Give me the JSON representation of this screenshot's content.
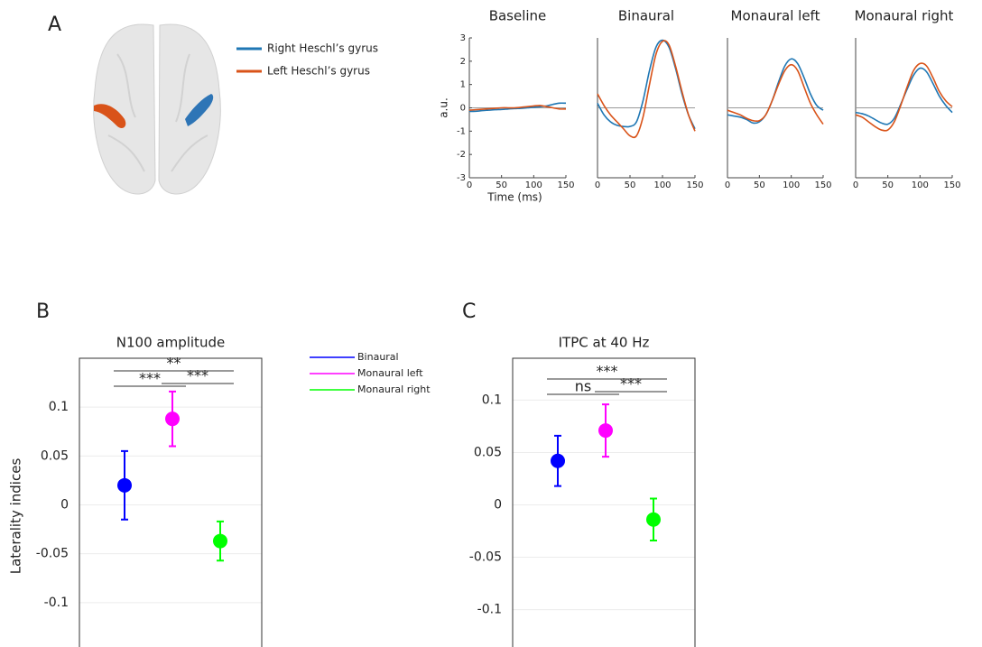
{
  "panels": [
    "A",
    "B",
    "C"
  ],
  "brain_legend": [
    {
      "name": "Right Heschl’s gyrus",
      "color": "#1f77b4"
    },
    {
      "name": "Left Heschl’s gyrus",
      "color": "#d95319"
    }
  ],
  "chart_data": [
    {
      "type": "line",
      "title": "Baseline",
      "xlabel": "Time (ms)",
      "ylabel": "a.u.",
      "x": [
        0,
        10,
        20,
        30,
        40,
        50,
        60,
        70,
        80,
        90,
        100,
        110,
        120,
        130,
        140,
        150
      ],
      "xlim": [
        0,
        150
      ],
      "xticks": [
        0,
        50,
        100,
        150
      ],
      "ylim": [
        -3,
        3
      ],
      "yticks": [
        -3,
        -2,
        -1,
        0,
        1,
        2,
        3
      ],
      "series": [
        {
          "color": "#1f77b4",
          "values": [
            -0.15,
            -0.15,
            -0.12,
            -0.1,
            -0.08,
            -0.07,
            -0.05,
            -0.03,
            -0.02,
            0,
            0.02,
            0.05,
            0.08,
            0.15,
            0.2,
            0.2
          ]
        },
        {
          "color": "#d95319",
          "values": [
            -0.1,
            -0.08,
            -0.06,
            -0.04,
            -0.02,
            0,
            0,
            0,
            0.02,
            0.05,
            0.08,
            0.1,
            0.05,
            0,
            -0.05,
            -0.05
          ]
        }
      ]
    },
    {
      "type": "line",
      "title": "Binaural",
      "x": [
        0,
        10,
        20,
        30,
        40,
        50,
        60,
        70,
        80,
        90,
        100,
        110,
        120,
        130,
        140,
        150
      ],
      "xlim": [
        0,
        150
      ],
      "xticks": [
        0,
        50,
        100,
        150
      ],
      "ylim": [
        -3,
        3
      ],
      "series": [
        {
          "color": "#1f77b4",
          "values": [
            0.2,
            -0.3,
            -0.6,
            -0.75,
            -0.8,
            -0.8,
            -0.6,
            0.3,
            1.6,
            2.6,
            2.9,
            2.6,
            1.7,
            0.6,
            -0.3,
            -0.9
          ]
        },
        {
          "color": "#d95319",
          "values": [
            0.6,
            0.1,
            -0.3,
            -0.6,
            -0.9,
            -1.2,
            -1.2,
            -0.4,
            1.0,
            2.3,
            2.85,
            2.7,
            1.8,
            0.7,
            -0.3,
            -1.0
          ]
        }
      ]
    },
    {
      "type": "line",
      "title": "Monaural left",
      "x": [
        0,
        10,
        20,
        30,
        40,
        50,
        60,
        70,
        80,
        90,
        100,
        110,
        120,
        130,
        140,
        150
      ],
      "xlim": [
        0,
        150
      ],
      "xticks": [
        0,
        50,
        100,
        150
      ],
      "ylim": [
        -3,
        3
      ],
      "series": [
        {
          "color": "#1f77b4",
          "values": [
            -0.3,
            -0.35,
            -0.4,
            -0.5,
            -0.65,
            -0.6,
            -0.3,
            0.3,
            1.1,
            1.8,
            2.1,
            1.9,
            1.3,
            0.6,
            0.1,
            -0.1
          ]
        },
        {
          "color": "#d95319",
          "values": [
            -0.1,
            -0.2,
            -0.3,
            -0.45,
            -0.55,
            -0.55,
            -0.3,
            0.3,
            1.0,
            1.6,
            1.85,
            1.6,
            0.9,
            0.2,
            -0.3,
            -0.7
          ]
        }
      ]
    },
    {
      "type": "line",
      "title": "Monaural right",
      "x": [
        0,
        10,
        20,
        30,
        40,
        50,
        60,
        70,
        80,
        90,
        100,
        110,
        120,
        130,
        140,
        150
      ],
      "xlim": [
        0,
        150
      ],
      "xticks": [
        0,
        50,
        100,
        150
      ],
      "ylim": [
        -3,
        3
      ],
      "series": [
        {
          "color": "#1f77b4",
          "values": [
            -0.2,
            -0.25,
            -0.35,
            -0.5,
            -0.65,
            -0.7,
            -0.45,
            0.15,
            0.8,
            1.4,
            1.7,
            1.55,
            1.05,
            0.5,
            0.1,
            -0.2
          ]
        },
        {
          "color": "#d95319",
          "values": [
            -0.3,
            -0.4,
            -0.6,
            -0.8,
            -0.95,
            -0.95,
            -0.6,
            0.1,
            0.9,
            1.6,
            1.9,
            1.8,
            1.3,
            0.7,
            0.3,
            0.05
          ]
        }
      ]
    },
    {
      "type": "errorbar",
      "title": "N100 amplitude",
      "ylabel": "Laterality indices",
      "categories": [
        "Binaural",
        "Monaural left",
        "Monaural right"
      ],
      "colors": [
        "#0000ff",
        "#ff00ff",
        "#00ff00"
      ],
      "values": [
        0.02,
        0.088,
        -0.037
      ],
      "errors": [
        0.035,
        0.028,
        0.02
      ],
      "ylim": [
        -0.15,
        0.15
      ],
      "yticks": [
        -0.1,
        -0.05,
        0,
        0.05,
        0.1
      ],
      "grid": true,
      "annotations": [
        "***",
        "**",
        "***"
      ]
    },
    {
      "type": "errorbar",
      "title": "ITPC at 40 Hz",
      "categories": [
        "Binaural",
        "Monaural left",
        "Monaural right"
      ],
      "colors": [
        "#0000ff",
        "#ff00ff",
        "#00ff00"
      ],
      "values": [
        0.042,
        0.071,
        -0.014
      ],
      "errors": [
        0.024,
        0.025,
        0.02
      ],
      "ylim": [
        -0.14,
        0.14
      ],
      "yticks": [
        -0.1,
        -0.05,
        0,
        0.05,
        0.1
      ],
      "grid": true,
      "annotations": [
        "***",
        "ns",
        "***"
      ]
    }
  ]
}
